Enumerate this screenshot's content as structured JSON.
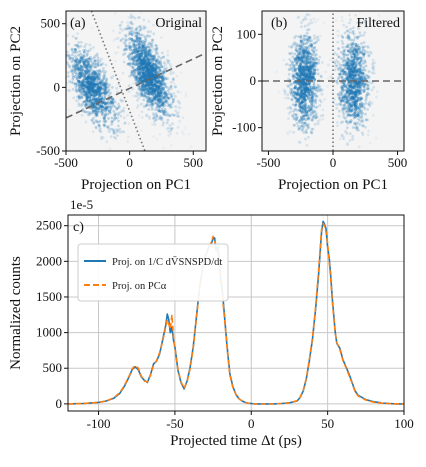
{
  "colors": {
    "scatter": "#1f77b4",
    "series_blue": "#1f77b4",
    "series_orange": "#ff7f0e",
    "pc_dashed": "#666666",
    "pc_dotted": "#777777",
    "grid": "#c8c8c8"
  },
  "chart_data": [
    {
      "type": "scatter",
      "panel_tag": "(a)",
      "corner_label": "Original",
      "xlabel": "Projection on PC1",
      "ylabel": "Projection on PC2",
      "xlim": [
        -500,
        600
      ],
      "ylim": [
        -500,
        600
      ],
      "xticks": [
        -500,
        0,
        500
      ],
      "yticks": [
        -500,
        0,
        500
      ],
      "clusters": [
        {
          "center": [
            -290,
            0
          ],
          "spread_major": 190,
          "spread_minor": 75,
          "angle_deg": 115,
          "density": 1.0
        },
        {
          "center": [
            150,
            120
          ],
          "spread_major": 200,
          "spread_minor": 75,
          "angle_deg": 110,
          "density": 0.85
        },
        {
          "center": [
            160,
            70
          ],
          "spread_major": 180,
          "spread_minor": 60,
          "angle_deg": 112,
          "density": 0.55
        }
      ],
      "lines": [
        {
          "style": "dashed",
          "x": [
            -500,
            600
          ],
          "y": [
            -240,
            270
          ]
        },
        {
          "style": "dotted",
          "x": [
            -300,
            120
          ],
          "y": [
            600,
            -500
          ]
        }
      ]
    },
    {
      "type": "scatter",
      "panel_tag": "(b)",
      "corner_label": "Filtered",
      "xlabel": "Projection on PC1",
      "ylabel": "Projection on PC2",
      "xlim": [
        -550,
        550
      ],
      "ylim": [
        -150,
        150
      ],
      "xticks": [
        -500,
        0,
        500
      ],
      "yticks": [
        -100,
        0,
        100
      ],
      "clusters": [
        {
          "center": [
            -220,
            0
          ],
          "spread_major": 55,
          "spread_minor": 60,
          "angle_deg": 90,
          "density": 1.0
        },
        {
          "center": [
            160,
            0
          ],
          "spread_major": 55,
          "spread_minor": 65,
          "angle_deg": 90,
          "density": 0.9
        }
      ],
      "lines": [
        {
          "style": "dashed",
          "x": [
            -550,
            550
          ],
          "y": [
            0,
            0
          ]
        },
        {
          "style": "dotted",
          "x": [
            0,
            0
          ],
          "y": [
            -150,
            150
          ]
        }
      ]
    },
    {
      "type": "line",
      "panel_tag": "c)",
      "exponent_label": "1e-5",
      "xlabel": "Projected time Δt (ps)",
      "ylabel": "Normalized counts",
      "xlim": [
        -120,
        100
      ],
      "ylim": [
        -100,
        2650
      ],
      "xticks": [
        -100,
        -50,
        0,
        50,
        100
      ],
      "yticks": [
        0,
        500,
        1000,
        1500,
        2000,
        2500
      ],
      "grid": true,
      "legend_position": "upper-left",
      "series": [
        {
          "name": "Proj. on 1/C dV̄SNSPD/dt",
          "style": "solid",
          "x": [
            -120,
            -110,
            -100,
            -95,
            -90,
            -86,
            -83,
            -80,
            -78,
            -76,
            -74,
            -72,
            -70,
            -68,
            -66,
            -64,
            -62,
            -60,
            -58,
            -56,
            -55,
            -54,
            -53,
            -52,
            -51,
            -50,
            -48,
            -46,
            -44,
            -42,
            -40,
            -38,
            -36,
            -34,
            -32,
            -30,
            -28,
            -26,
            -25,
            -24,
            -23,
            -22,
            -21,
            -20,
            -19,
            -18,
            -17,
            -16,
            -15,
            -14,
            -12,
            -10,
            -8,
            -6,
            -4,
            -2,
            0,
            2,
            5,
            10,
            15,
            20,
            25,
            30,
            32,
            34,
            36,
            38,
            40,
            42,
            44,
            45,
            46,
            47,
            48,
            49,
            50,
            51,
            52,
            53,
            54,
            55,
            56,
            58,
            60,
            62,
            64,
            66,
            68,
            70,
            75,
            80,
            85,
            90,
            95,
            100
          ],
          "y": [
            0,
            5,
            20,
            40,
            80,
            150,
            250,
            380,
            480,
            520,
            480,
            380,
            330,
            300,
            410,
            560,
            600,
            700,
            900,
            1100,
            1260,
            1180,
            1000,
            1080,
            900,
            800,
            470,
            300,
            210,
            320,
            520,
            800,
            1200,
            1600,
            1900,
            2080,
            2200,
            2260,
            2320,
            2330,
            2150,
            2200,
            2050,
            1750,
            1600,
            1350,
            1100,
            850,
            620,
            420,
            240,
            130,
            70,
            40,
            20,
            10,
            5,
            0,
            0,
            0,
            0,
            5,
            15,
            40,
            90,
            180,
            350,
            600,
            900,
            1300,
            1800,
            2100,
            2400,
            2560,
            2520,
            2450,
            2200,
            2050,
            1800,
            1500,
            1250,
            1000,
            850,
            780,
            620,
            520,
            420,
            300,
            180,
            120,
            60,
            30,
            15,
            5,
            0,
            0
          ]
        },
        {
          "name": "Proj. on PCα",
          "style": "dashed",
          "x": [
            -120,
            -110,
            -100,
            -95,
            -90,
            -86,
            -83,
            -80,
            -78,
            -76,
            -74,
            -72,
            -70,
            -68,
            -66,
            -64,
            -62,
            -60,
            -58,
            -56,
            -55,
            -54,
            -53,
            -52,
            -51,
            -50,
            -48,
            -46,
            -44,
            -42,
            -40,
            -38,
            -36,
            -34,
            -32,
            -30,
            -28,
            -26,
            -25,
            -24,
            -23,
            -22,
            -21,
            -20,
            -19,
            -18,
            -17,
            -16,
            -15,
            -14,
            -12,
            -10,
            -8,
            -6,
            -4,
            -2,
            0,
            2,
            5,
            10,
            15,
            20,
            25,
            30,
            32,
            34,
            36,
            38,
            40,
            42,
            44,
            45,
            46,
            47,
            48,
            49,
            50,
            51,
            52,
            53,
            54,
            55,
            56,
            58,
            60,
            62,
            64,
            66,
            68,
            70,
            75,
            80,
            85,
            90,
            95,
            100
          ],
          "y": [
            0,
            5,
            20,
            40,
            85,
            160,
            260,
            390,
            490,
            540,
            500,
            390,
            320,
            310,
            400,
            540,
            610,
            720,
            880,
            1080,
            1180,
            1120,
            1050,
            1250,
            950,
            780,
            480,
            310,
            220,
            310,
            500,
            780,
            1180,
            1580,
            1880,
            2060,
            2180,
            2280,
            2350,
            2290,
            2200,
            2150,
            2000,
            1700,
            1550,
            1300,
            1080,
            830,
            600,
            400,
            230,
            130,
            70,
            40,
            20,
            10,
            5,
            0,
            0,
            0,
            0,
            5,
            15,
            45,
            95,
            190,
            360,
            620,
            920,
            1330,
            1850,
            2150,
            2440,
            2530,
            2500,
            2400,
            2250,
            2000,
            1750,
            1450,
            1220,
            990,
            860,
            760,
            610,
            510,
            400,
            290,
            170,
            110,
            55,
            25,
            10,
            5,
            0,
            0
          ]
        }
      ]
    }
  ]
}
